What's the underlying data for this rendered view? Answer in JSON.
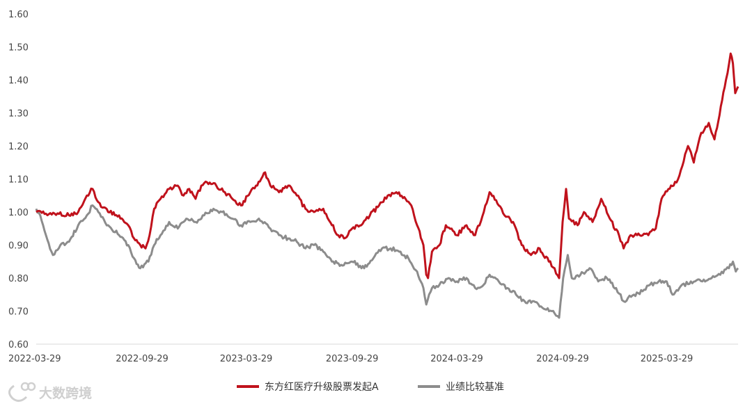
{
  "watermark": {
    "text": "大数跨境"
  },
  "legend": [
    {
      "label": "东方红医疗升级股票发起A",
      "color": "#c0121c"
    },
    {
      "label": "业绩比较基准",
      "color": "#8c8c8c"
    }
  ],
  "chart_data": {
    "type": "line",
    "x_tick_labels": [
      "2022-03-29",
      "2022-09-29",
      "2023-03-29",
      "2023-09-29",
      "2024-03-29",
      "2024-09-29",
      "2025-03-29"
    ],
    "y_tick_labels": [
      "0.60",
      "0.70",
      "0.80",
      "0.90",
      "1.00",
      "1.10",
      "1.20",
      "1.30",
      "1.40",
      "1.50",
      "1.60"
    ],
    "ylim": [
      0.6,
      1.6
    ],
    "xlim": [
      "2022-03-29",
      "2025-07-31"
    ],
    "grid": false,
    "legend_position": "bottom",
    "series": [
      {
        "name": "东方红医疗升级股票发起A",
        "color": "#c0121c",
        "points": [
          [
            "2022-03-29",
            1.0
          ],
          [
            "2022-04-15",
            0.995
          ],
          [
            "2022-05-05",
            0.996
          ],
          [
            "2022-05-25",
            0.99
          ],
          [
            "2022-06-10",
            1.0
          ],
          [
            "2022-06-25",
            1.05
          ],
          [
            "2022-07-05",
            1.07
          ],
          [
            "2022-07-15",
            1.03
          ],
          [
            "2022-08-01",
            1.0
          ],
          [
            "2022-08-20",
            0.99
          ],
          [
            "2022-09-05",
            0.96
          ],
          [
            "2022-09-15",
            0.92
          ],
          [
            "2022-09-26",
            0.9
          ],
          [
            "2022-10-05",
            0.89
          ],
          [
            "2022-10-12",
            0.93
          ],
          [
            "2022-10-20",
            1.01
          ],
          [
            "2022-10-31",
            1.04
          ],
          [
            "2022-11-15",
            1.07
          ],
          [
            "2022-11-30",
            1.08
          ],
          [
            "2022-12-10",
            1.05
          ],
          [
            "2022-12-20",
            1.07
          ],
          [
            "2022-12-31",
            1.04
          ],
          [
            "2023-01-10",
            1.08
          ],
          [
            "2023-01-20",
            1.09
          ],
          [
            "2023-02-05",
            1.08
          ],
          [
            "2023-02-20",
            1.06
          ],
          [
            "2023-03-05",
            1.04
          ],
          [
            "2023-03-20",
            1.02
          ],
          [
            "2023-04-05",
            1.06
          ],
          [
            "2023-04-15",
            1.08
          ],
          [
            "2023-05-01",
            1.12
          ],
          [
            "2023-05-10",
            1.08
          ],
          [
            "2023-05-25",
            1.06
          ],
          [
            "2023-06-10",
            1.08
          ],
          [
            "2023-06-25",
            1.05
          ],
          [
            "2023-07-10",
            1.01
          ],
          [
            "2023-07-25",
            1.0
          ],
          [
            "2023-08-10",
            1.01
          ],
          [
            "2023-08-25",
            0.96
          ],
          [
            "2023-09-05",
            0.93
          ],
          [
            "2023-09-15",
            0.92
          ],
          [
            "2023-09-29",
            0.95
          ],
          [
            "2023-10-15",
            0.96
          ],
          [
            "2023-10-30",
            0.99
          ],
          [
            "2023-11-15",
            1.02
          ],
          [
            "2023-11-30",
            1.05
          ],
          [
            "2023-12-15",
            1.06
          ],
          [
            "2023-12-31",
            1.04
          ],
          [
            "2024-01-10",
            1.02
          ],
          [
            "2024-01-20",
            0.96
          ],
          [
            "2024-01-31",
            0.9
          ],
          [
            "2024-02-05",
            0.81
          ],
          [
            "2024-02-08",
            0.8
          ],
          [
            "2024-02-15",
            0.88
          ],
          [
            "2024-02-28",
            0.9
          ],
          [
            "2024-03-10",
            0.96
          ],
          [
            "2024-03-20",
            0.95
          ],
          [
            "2024-03-29",
            0.93
          ],
          [
            "2024-04-15",
            0.96
          ],
          [
            "2024-04-30",
            0.93
          ],
          [
            "2024-05-15",
            1.0
          ],
          [
            "2024-05-25",
            1.06
          ],
          [
            "2024-06-10",
            1.02
          ],
          [
            "2024-06-20",
            0.99
          ],
          [
            "2024-07-05",
            0.97
          ],
          [
            "2024-07-20",
            0.9
          ],
          [
            "2024-08-05",
            0.87
          ],
          [
            "2024-08-20",
            0.89
          ],
          [
            "2024-09-05",
            0.85
          ],
          [
            "2024-09-15",
            0.83
          ],
          [
            "2024-09-23",
            0.8
          ],
          [
            "2024-09-29",
            0.97
          ],
          [
            "2024-10-05",
            1.07
          ],
          [
            "2024-10-10",
            0.98
          ],
          [
            "2024-10-25",
            0.96
          ],
          [
            "2024-11-05",
            1.0
          ],
          [
            "2024-11-20",
            0.97
          ],
          [
            "2024-12-05",
            1.04
          ],
          [
            "2024-12-20",
            0.98
          ],
          [
            "2025-01-05",
            0.93
          ],
          [
            "2025-01-13",
            0.89
          ],
          [
            "2025-01-25",
            0.93
          ],
          [
            "2025-02-10",
            0.93
          ],
          [
            "2025-02-25",
            0.93
          ],
          [
            "2025-03-10",
            0.95
          ],
          [
            "2025-03-20",
            1.04
          ],
          [
            "2025-04-01",
            1.07
          ],
          [
            "2025-04-10",
            1.08
          ],
          [
            "2025-04-20",
            1.11
          ],
          [
            "2025-05-05",
            1.2
          ],
          [
            "2025-05-15",
            1.15
          ],
          [
            "2025-05-28",
            1.24
          ],
          [
            "2025-06-10",
            1.27
          ],
          [
            "2025-06-20",
            1.22
          ],
          [
            "2025-07-01",
            1.32
          ],
          [
            "2025-07-10",
            1.4
          ],
          [
            "2025-07-18",
            1.48
          ],
          [
            "2025-07-22",
            1.45
          ],
          [
            "2025-07-26",
            1.36
          ],
          [
            "2025-07-31",
            1.38
          ]
        ]
      },
      {
        "name": "业绩比较基准",
        "color": "#8c8c8c",
        "points": [
          [
            "2022-03-29",
            1.01
          ],
          [
            "2022-04-05",
            0.99
          ],
          [
            "2022-04-15",
            0.93
          ],
          [
            "2022-04-27",
            0.87
          ],
          [
            "2022-05-10",
            0.9
          ],
          [
            "2022-05-25",
            0.91
          ],
          [
            "2022-06-10",
            0.96
          ],
          [
            "2022-06-25",
            0.99
          ],
          [
            "2022-07-05",
            1.02
          ],
          [
            "2022-07-15",
            1.0
          ],
          [
            "2022-08-01",
            0.96
          ],
          [
            "2022-08-20",
            0.93
          ],
          [
            "2022-09-05",
            0.9
          ],
          [
            "2022-09-15",
            0.86
          ],
          [
            "2022-09-26",
            0.83
          ],
          [
            "2022-10-10",
            0.85
          ],
          [
            "2022-10-20",
            0.9
          ],
          [
            "2022-10-31",
            0.93
          ],
          [
            "2022-11-15",
            0.97
          ],
          [
            "2022-11-30",
            0.95
          ],
          [
            "2022-12-15",
            0.98
          ],
          [
            "2022-12-31",
            0.97
          ],
          [
            "2023-01-15",
            0.99
          ],
          [
            "2023-01-31",
            1.01
          ],
          [
            "2023-02-15",
            1.0
          ],
          [
            "2023-03-05",
            0.98
          ],
          [
            "2023-03-20",
            0.96
          ],
          [
            "2023-04-05",
            0.97
          ],
          [
            "2023-04-20",
            0.98
          ],
          [
            "2023-05-10",
            0.95
          ],
          [
            "2023-05-25",
            0.93
          ],
          [
            "2023-06-10",
            0.92
          ],
          [
            "2023-06-25",
            0.91
          ],
          [
            "2023-07-10",
            0.89
          ],
          [
            "2023-07-25",
            0.9
          ],
          [
            "2023-08-10",
            0.88
          ],
          [
            "2023-08-25",
            0.85
          ],
          [
            "2023-09-10",
            0.84
          ],
          [
            "2023-09-29",
            0.85
          ],
          [
            "2023-10-20",
            0.83
          ],
          [
            "2023-11-05",
            0.86
          ],
          [
            "2023-11-20",
            0.89
          ],
          [
            "2023-12-05",
            0.89
          ],
          [
            "2023-12-20",
            0.88
          ],
          [
            "2024-01-05",
            0.86
          ],
          [
            "2024-01-20",
            0.82
          ],
          [
            "2024-01-31",
            0.77
          ],
          [
            "2024-02-05",
            0.72
          ],
          [
            "2024-02-15",
            0.77
          ],
          [
            "2024-02-28",
            0.78
          ],
          [
            "2024-03-15",
            0.8
          ],
          [
            "2024-03-29",
            0.79
          ],
          [
            "2024-04-15",
            0.8
          ],
          [
            "2024-04-30",
            0.77
          ],
          [
            "2024-05-15",
            0.78
          ],
          [
            "2024-05-25",
            0.81
          ],
          [
            "2024-06-10",
            0.79
          ],
          [
            "2024-06-25",
            0.77
          ],
          [
            "2024-07-10",
            0.75
          ],
          [
            "2024-07-25",
            0.73
          ],
          [
            "2024-08-10",
            0.73
          ],
          [
            "2024-08-25",
            0.71
          ],
          [
            "2024-09-10",
            0.7
          ],
          [
            "2024-09-23",
            0.68
          ],
          [
            "2024-09-30",
            0.8
          ],
          [
            "2024-10-08",
            0.87
          ],
          [
            "2024-10-15",
            0.8
          ],
          [
            "2024-10-30",
            0.81
          ],
          [
            "2024-11-15",
            0.83
          ],
          [
            "2024-11-30",
            0.79
          ],
          [
            "2024-12-15",
            0.8
          ],
          [
            "2024-12-31",
            0.77
          ],
          [
            "2025-01-13",
            0.73
          ],
          [
            "2025-01-31",
            0.75
          ],
          [
            "2025-02-15",
            0.76
          ],
          [
            "2025-02-28",
            0.78
          ],
          [
            "2025-03-15",
            0.79
          ],
          [
            "2025-03-29",
            0.79
          ],
          [
            "2025-04-08",
            0.75
          ],
          [
            "2025-04-20",
            0.77
          ],
          [
            "2025-05-10",
            0.79
          ],
          [
            "2025-05-30",
            0.79
          ],
          [
            "2025-06-15",
            0.8
          ],
          [
            "2025-06-30",
            0.81
          ],
          [
            "2025-07-15",
            0.83
          ],
          [
            "2025-07-22",
            0.85
          ],
          [
            "2025-07-27",
            0.82
          ],
          [
            "2025-07-31",
            0.83
          ]
        ]
      }
    ]
  }
}
